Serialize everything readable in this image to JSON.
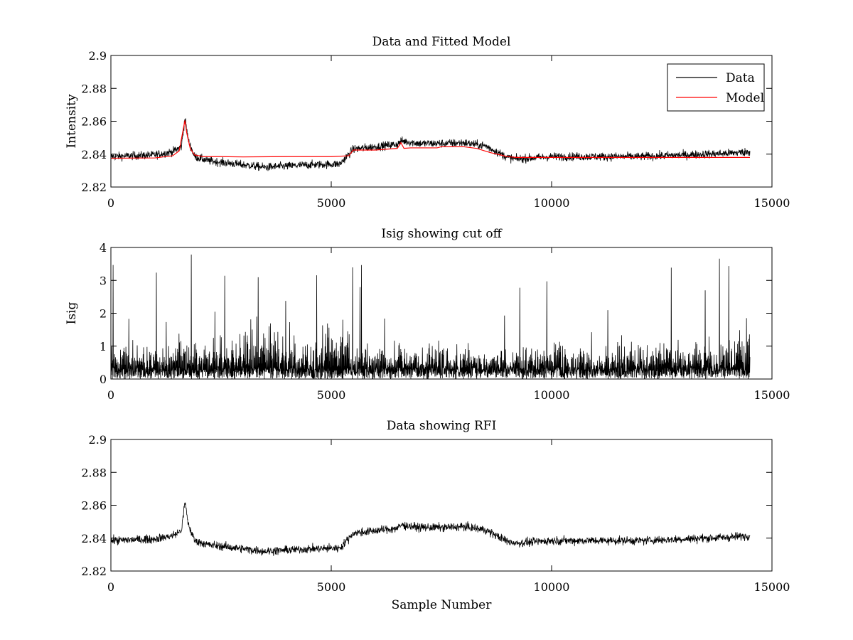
{
  "figure": {
    "background": "#ffffff"
  },
  "chart_data": [
    {
      "type": "line",
      "title": "Data and Fitted Model",
      "xlabel": "",
      "ylabel": "Intensity",
      "xlim": [
        0,
        15000
      ],
      "ylim": [
        2.82,
        2.9
      ],
      "xticks": [
        0,
        5000,
        10000,
        15000
      ],
      "xtick_labels": [
        "0",
        "5000",
        "10000",
        "15000"
      ],
      "yticks": [
        2.82,
        2.84,
        2.86,
        2.88,
        2.9
      ],
      "ytick_labels": [
        "2.82",
        "2.84",
        "2.86",
        "2.88",
        "2.9"
      ],
      "legend": {
        "position": "top-right",
        "entries": [
          "Data",
          "Model"
        ]
      },
      "series": [
        {
          "name": "Data",
          "color": "#000000",
          "style": "noisy",
          "baseline": {
            "x": [
              0,
              1000,
              1400,
              1600,
              1680,
              1760,
              1900,
              2200,
              3000,
              3500,
              4500,
              5200,
              5500,
              6000,
              6500,
              6600,
              7000,
              7600,
              8000,
              8500,
              9000,
              9200,
              10000,
              11000,
              12000,
              13000,
              14000,
              14500
            ],
            "y": [
              2.8385,
              2.8395,
              2.8415,
              2.8445,
              2.862,
              2.848,
              2.8385,
              2.836,
              2.8335,
              2.832,
              2.8335,
              2.834,
              2.843,
              2.8445,
              2.846,
              2.848,
              2.8465,
              2.8465,
              2.847,
              2.845,
              2.838,
              2.837,
              2.8385,
              2.8385,
              2.8385,
              2.8395,
              2.8405,
              2.8415
            ]
          },
          "noise_amplitude": 0.0045
        },
        {
          "name": "Model",
          "color": "#ff0000",
          "style": "line",
          "x": [
            0,
            1000,
            1400,
            1550,
            1620,
            1680,
            1720,
            1800,
            1900,
            2100,
            2500,
            3000,
            4000,
            5000,
            5400,
            5500,
            6000,
            6500,
            6580,
            6650,
            6800,
            7400,
            7500,
            8000,
            8300,
            8600,
            9000,
            9200,
            10000,
            12000,
            14500
          ],
          "y": [
            2.8375,
            2.8377,
            2.839,
            2.842,
            2.852,
            2.8605,
            2.853,
            2.8435,
            2.8395,
            2.8385,
            2.8385,
            2.8383,
            2.8385,
            2.8385,
            2.839,
            2.8425,
            2.8425,
            2.8435,
            2.847,
            2.8435,
            2.8438,
            2.8438,
            2.8445,
            2.8445,
            2.8435,
            2.841,
            2.8385,
            2.838,
            2.838,
            2.838,
            2.838
          ]
        }
      ]
    },
    {
      "type": "line",
      "title": "Isig showing cut off",
      "xlabel": "",
      "ylabel": "Isig",
      "xlim": [
        0,
        15000
      ],
      "ylim": [
        0,
        4
      ],
      "xticks": [
        0,
        5000,
        10000,
        15000
      ],
      "xtick_labels": [
        "0",
        "5000",
        "10000",
        "15000"
      ],
      "yticks": [
        0,
        1,
        2,
        3,
        4
      ],
      "ytick_labels": [
        "0",
        "1",
        "2",
        "3",
        "4"
      ],
      "series": [
        {
          "name": "Isig",
          "color": "#000000",
          "style": "spiky",
          "envelope": {
            "x": [
              0,
              1500,
              2500,
              2800,
              3300,
              3700,
              4200,
              4800,
              5300,
              5500,
              6000,
              7000,
              8000,
              9000,
              10000,
              11000,
              12000,
              13000,
              14000,
              14300,
              14500
            ],
            "y": [
              1.3,
              1.4,
              1.6,
              2.3,
              2.8,
              2.6,
              2.1,
              2.2,
              2.6,
              1.6,
              1.35,
              1.3,
              1.25,
              1.3,
              1.35,
              1.4,
              1.45,
              1.5,
              1.7,
              2.2,
              2.6
            ]
          },
          "max_spike": 3.8
        }
      ]
    },
    {
      "type": "line",
      "title": "Data showing RFI",
      "xlabel": "Sample Number",
      "ylabel": "",
      "xlim": [
        0,
        15000
      ],
      "ylim": [
        2.82,
        2.9
      ],
      "xticks": [
        0,
        5000,
        10000,
        15000
      ],
      "xtick_labels": [
        "0",
        "5000",
        "10000",
        "15000"
      ],
      "yticks": [
        2.82,
        2.84,
        2.86,
        2.88,
        2.9
      ],
      "ytick_labels": [
        "2.82",
        "2.84",
        "2.86",
        "2.88",
        "2.9"
      ],
      "series": [
        {
          "name": "Data",
          "color": "#000000",
          "style": "noisy",
          "baseline": {
            "x": [
              0,
              1000,
              1400,
              1600,
              1680,
              1760,
              1900,
              2200,
              3000,
              3500,
              4500,
              5200,
              5500,
              6000,
              6500,
              6600,
              7000,
              7600,
              8000,
              8500,
              9000,
              9200,
              10000,
              11000,
              12000,
              13000,
              14000,
              14500
            ],
            "y": [
              2.8385,
              2.8395,
              2.8415,
              2.8445,
              2.862,
              2.848,
              2.8385,
              2.836,
              2.8335,
              2.832,
              2.8335,
              2.834,
              2.843,
              2.8445,
              2.846,
              2.848,
              2.8465,
              2.8465,
              2.847,
              2.845,
              2.838,
              2.837,
              2.8385,
              2.8385,
              2.8385,
              2.8395,
              2.8405,
              2.8415
            ]
          },
          "noise_amplitude": 0.0045
        }
      ]
    }
  ]
}
